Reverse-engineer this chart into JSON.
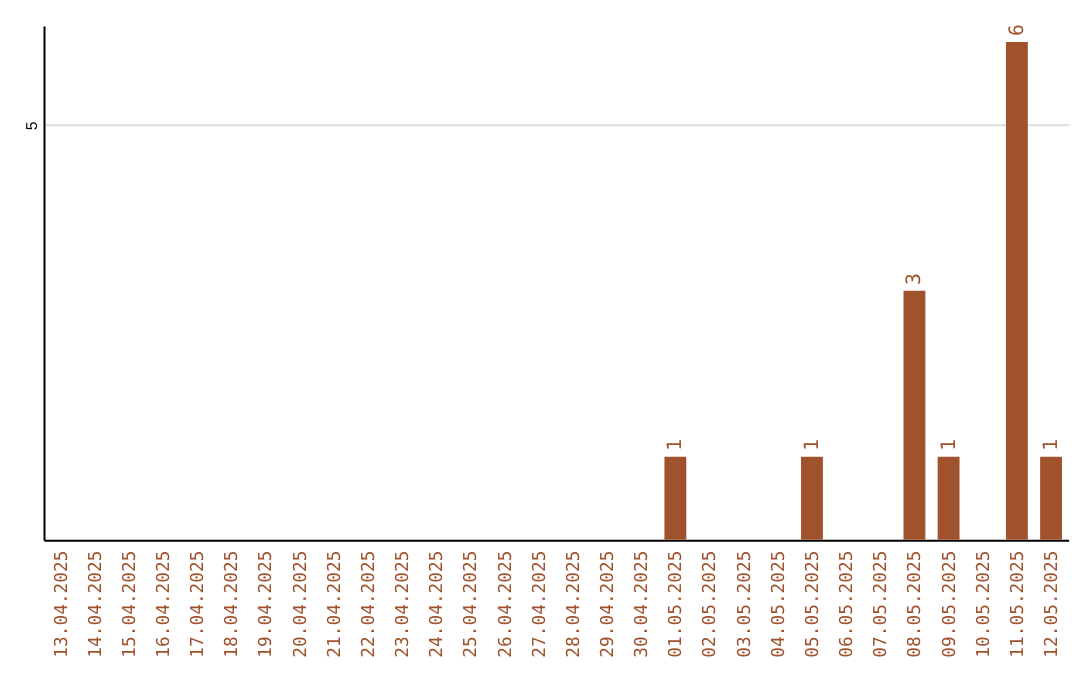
{
  "chart_data": {
    "type": "bar",
    "categories": [
      "13.04.2025",
      "14.04.2025",
      "15.04.2025",
      "16.04.2025",
      "17.04.2025",
      "18.04.2025",
      "19.04.2025",
      "20.04.2025",
      "21.04.2025",
      "22.04.2025",
      "23.04.2025",
      "24.04.2025",
      "25.04.2025",
      "26.04.2025",
      "27.04.2025",
      "28.04.2025",
      "29.04.2025",
      "30.04.2025",
      "01.05.2025",
      "02.05.2025",
      "03.05.2025",
      "04.05.2025",
      "05.05.2025",
      "06.05.2025",
      "07.05.2025",
      "08.05.2025",
      "09.05.2025",
      "10.05.2025",
      "11.05.2025",
      "12.05.2025"
    ],
    "values": [
      null,
      null,
      null,
      null,
      null,
      null,
      null,
      null,
      null,
      null,
      null,
      null,
      null,
      null,
      null,
      null,
      null,
      null,
      1,
      null,
      null,
      null,
      1,
      null,
      null,
      3,
      1,
      null,
      6,
      1
    ],
    "data_labels": true,
    "color": "#a0522d",
    "ylim": [
      0,
      6.2
    ],
    "yticks": [
      5
    ],
    "grid": "y"
  }
}
